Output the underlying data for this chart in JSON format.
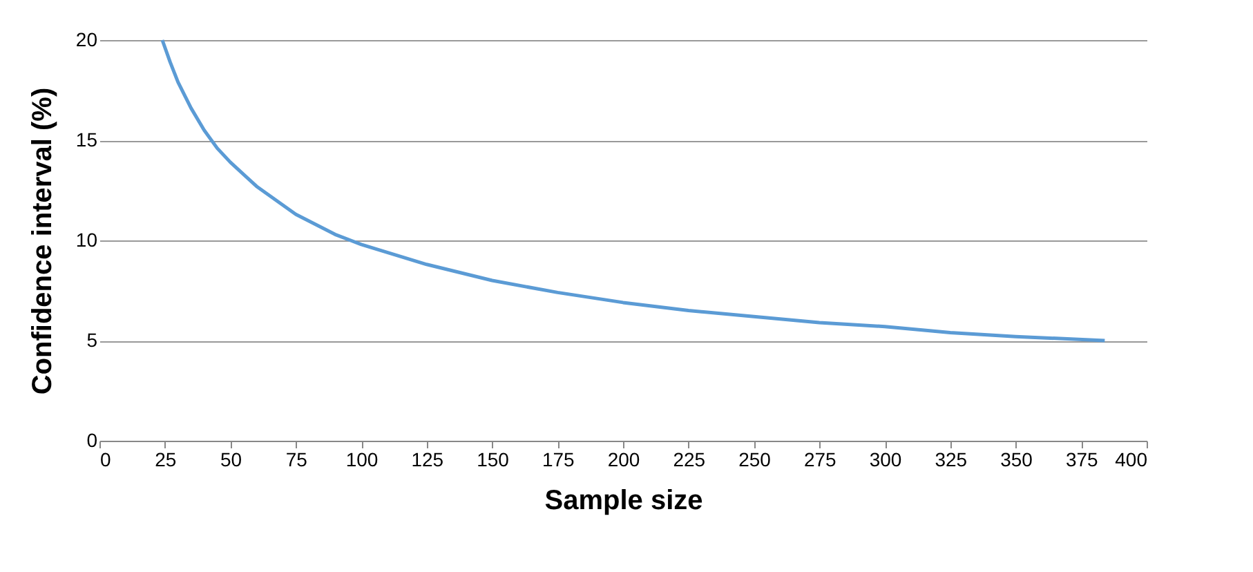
{
  "chart_data": {
    "type": "line",
    "xlabel": "Sample size",
    "ylabel": "Confidence interval (%)",
    "series": [
      {
        "color": "#5b9bd5",
        "x": [
          24,
          27,
          30,
          35,
          40,
          45,
          50,
          60,
          75,
          90,
          100,
          125,
          150,
          175,
          200,
          225,
          250,
          275,
          300,
          325,
          350,
          384
        ],
        "values": [
          20.0,
          18.9,
          17.9,
          16.6,
          15.5,
          14.6,
          13.9,
          12.7,
          11.3,
          10.3,
          9.8,
          8.8,
          8.0,
          7.4,
          6.9,
          6.5,
          6.2,
          5.9,
          5.7,
          5.4,
          5.2,
          5.0
        ]
      }
    ],
    "xlim": [
      0,
      400
    ],
    "ylim": [
      0,
      20
    ],
    "xticks": [
      0,
      25,
      50,
      75,
      100,
      125,
      150,
      175,
      200,
      225,
      250,
      275,
      300,
      325,
      350,
      375,
      400
    ],
    "yticks": [
      0,
      5,
      10,
      15,
      20
    ],
    "grid": "y",
    "marker": "none",
    "line_style": "solid"
  }
}
